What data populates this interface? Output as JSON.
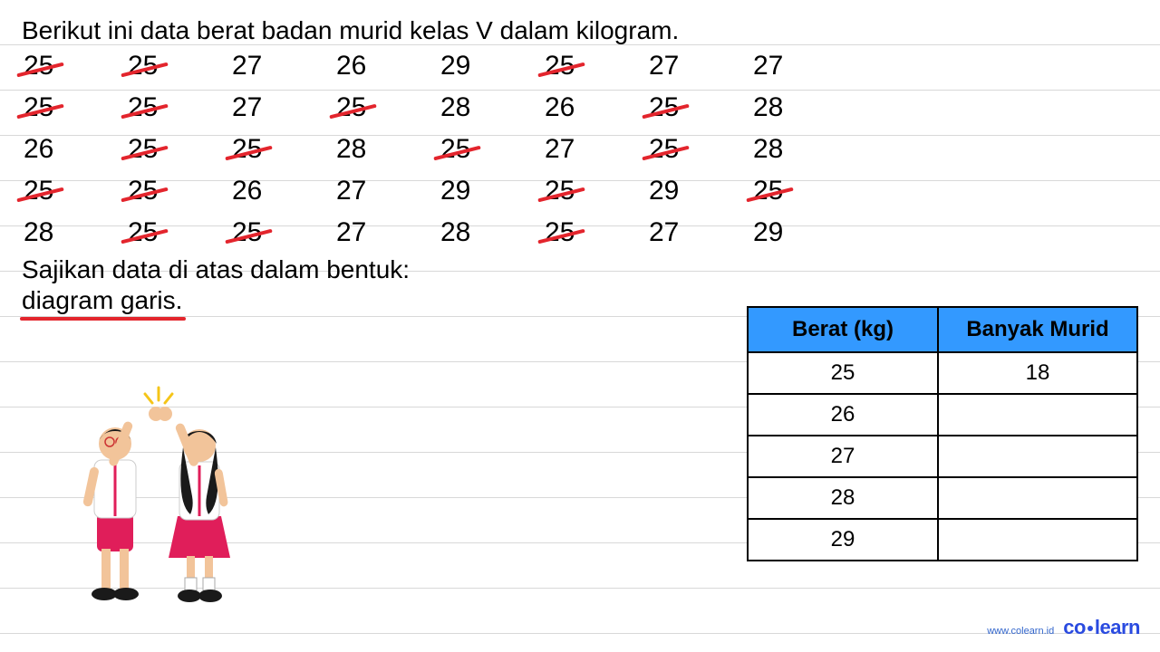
{
  "title": "Berikut ini data berat badan murid kelas V dalam kilogram.",
  "data_grid": {
    "rows": 5,
    "cols": 8,
    "font_size": 30,
    "strike_color": "#e3252d",
    "cells": [
      {
        "v": "25",
        "s": true
      },
      {
        "v": "25",
        "s": true
      },
      {
        "v": "27",
        "s": false
      },
      {
        "v": "26",
        "s": false
      },
      {
        "v": "29",
        "s": false
      },
      {
        "v": "25",
        "s": true
      },
      {
        "v": "27",
        "s": false
      },
      {
        "v": "27",
        "s": false
      },
      {
        "v": "25",
        "s": true
      },
      {
        "v": "25",
        "s": true
      },
      {
        "v": "27",
        "s": false
      },
      {
        "v": "25",
        "s": true
      },
      {
        "v": "28",
        "s": false
      },
      {
        "v": "26",
        "s": false
      },
      {
        "v": "25",
        "s": true
      },
      {
        "v": "28",
        "s": false
      },
      {
        "v": "26",
        "s": false
      },
      {
        "v": "25",
        "s": true
      },
      {
        "v": "25",
        "s": true
      },
      {
        "v": "28",
        "s": false
      },
      {
        "v": "25",
        "s": true
      },
      {
        "v": "27",
        "s": false
      },
      {
        "v": "25",
        "s": true
      },
      {
        "v": "28",
        "s": false
      },
      {
        "v": "25",
        "s": true
      },
      {
        "v": "25",
        "s": true
      },
      {
        "v": "26",
        "s": false
      },
      {
        "v": "27",
        "s": false
      },
      {
        "v": "29",
        "s": false
      },
      {
        "v": "25",
        "s": true
      },
      {
        "v": "29",
        "s": false
      },
      {
        "v": "25",
        "s": true
      },
      {
        "v": "28",
        "s": false
      },
      {
        "v": "25",
        "s": true
      },
      {
        "v": "25",
        "s": true
      },
      {
        "v": "27",
        "s": false
      },
      {
        "v": "28",
        "s": false
      },
      {
        "v": "25",
        "s": true
      },
      {
        "v": "27",
        "s": false
      },
      {
        "v": "29",
        "s": false
      }
    ]
  },
  "instruction_line1": "Sajikan data di atas dalam bentuk:",
  "instruction_line2": "diagram garis.",
  "underline_color": "#e3252d",
  "table": {
    "header_bg": "#3399ff",
    "border_color": "#000000",
    "columns": [
      "Berat (kg)",
      "Banyak Murid"
    ],
    "rows": [
      [
        "25",
        "18"
      ],
      [
        "26",
        ""
      ],
      [
        "27",
        ""
      ],
      [
        "28",
        ""
      ],
      [
        "29",
        ""
      ]
    ]
  },
  "brand": {
    "url": "www.colearn.id",
    "logo_left": "co",
    "logo_right": "learn",
    "logo_color": "#2a4be0"
  },
  "illustration": {
    "desc": "two-students-high-five",
    "shirt_color": "#ffffff",
    "skirt_color": "#e01e5a",
    "skin_color": "#f2c49a",
    "hair_boy": "#1a1a1a",
    "hair_girl": "#1a1a1a"
  }
}
